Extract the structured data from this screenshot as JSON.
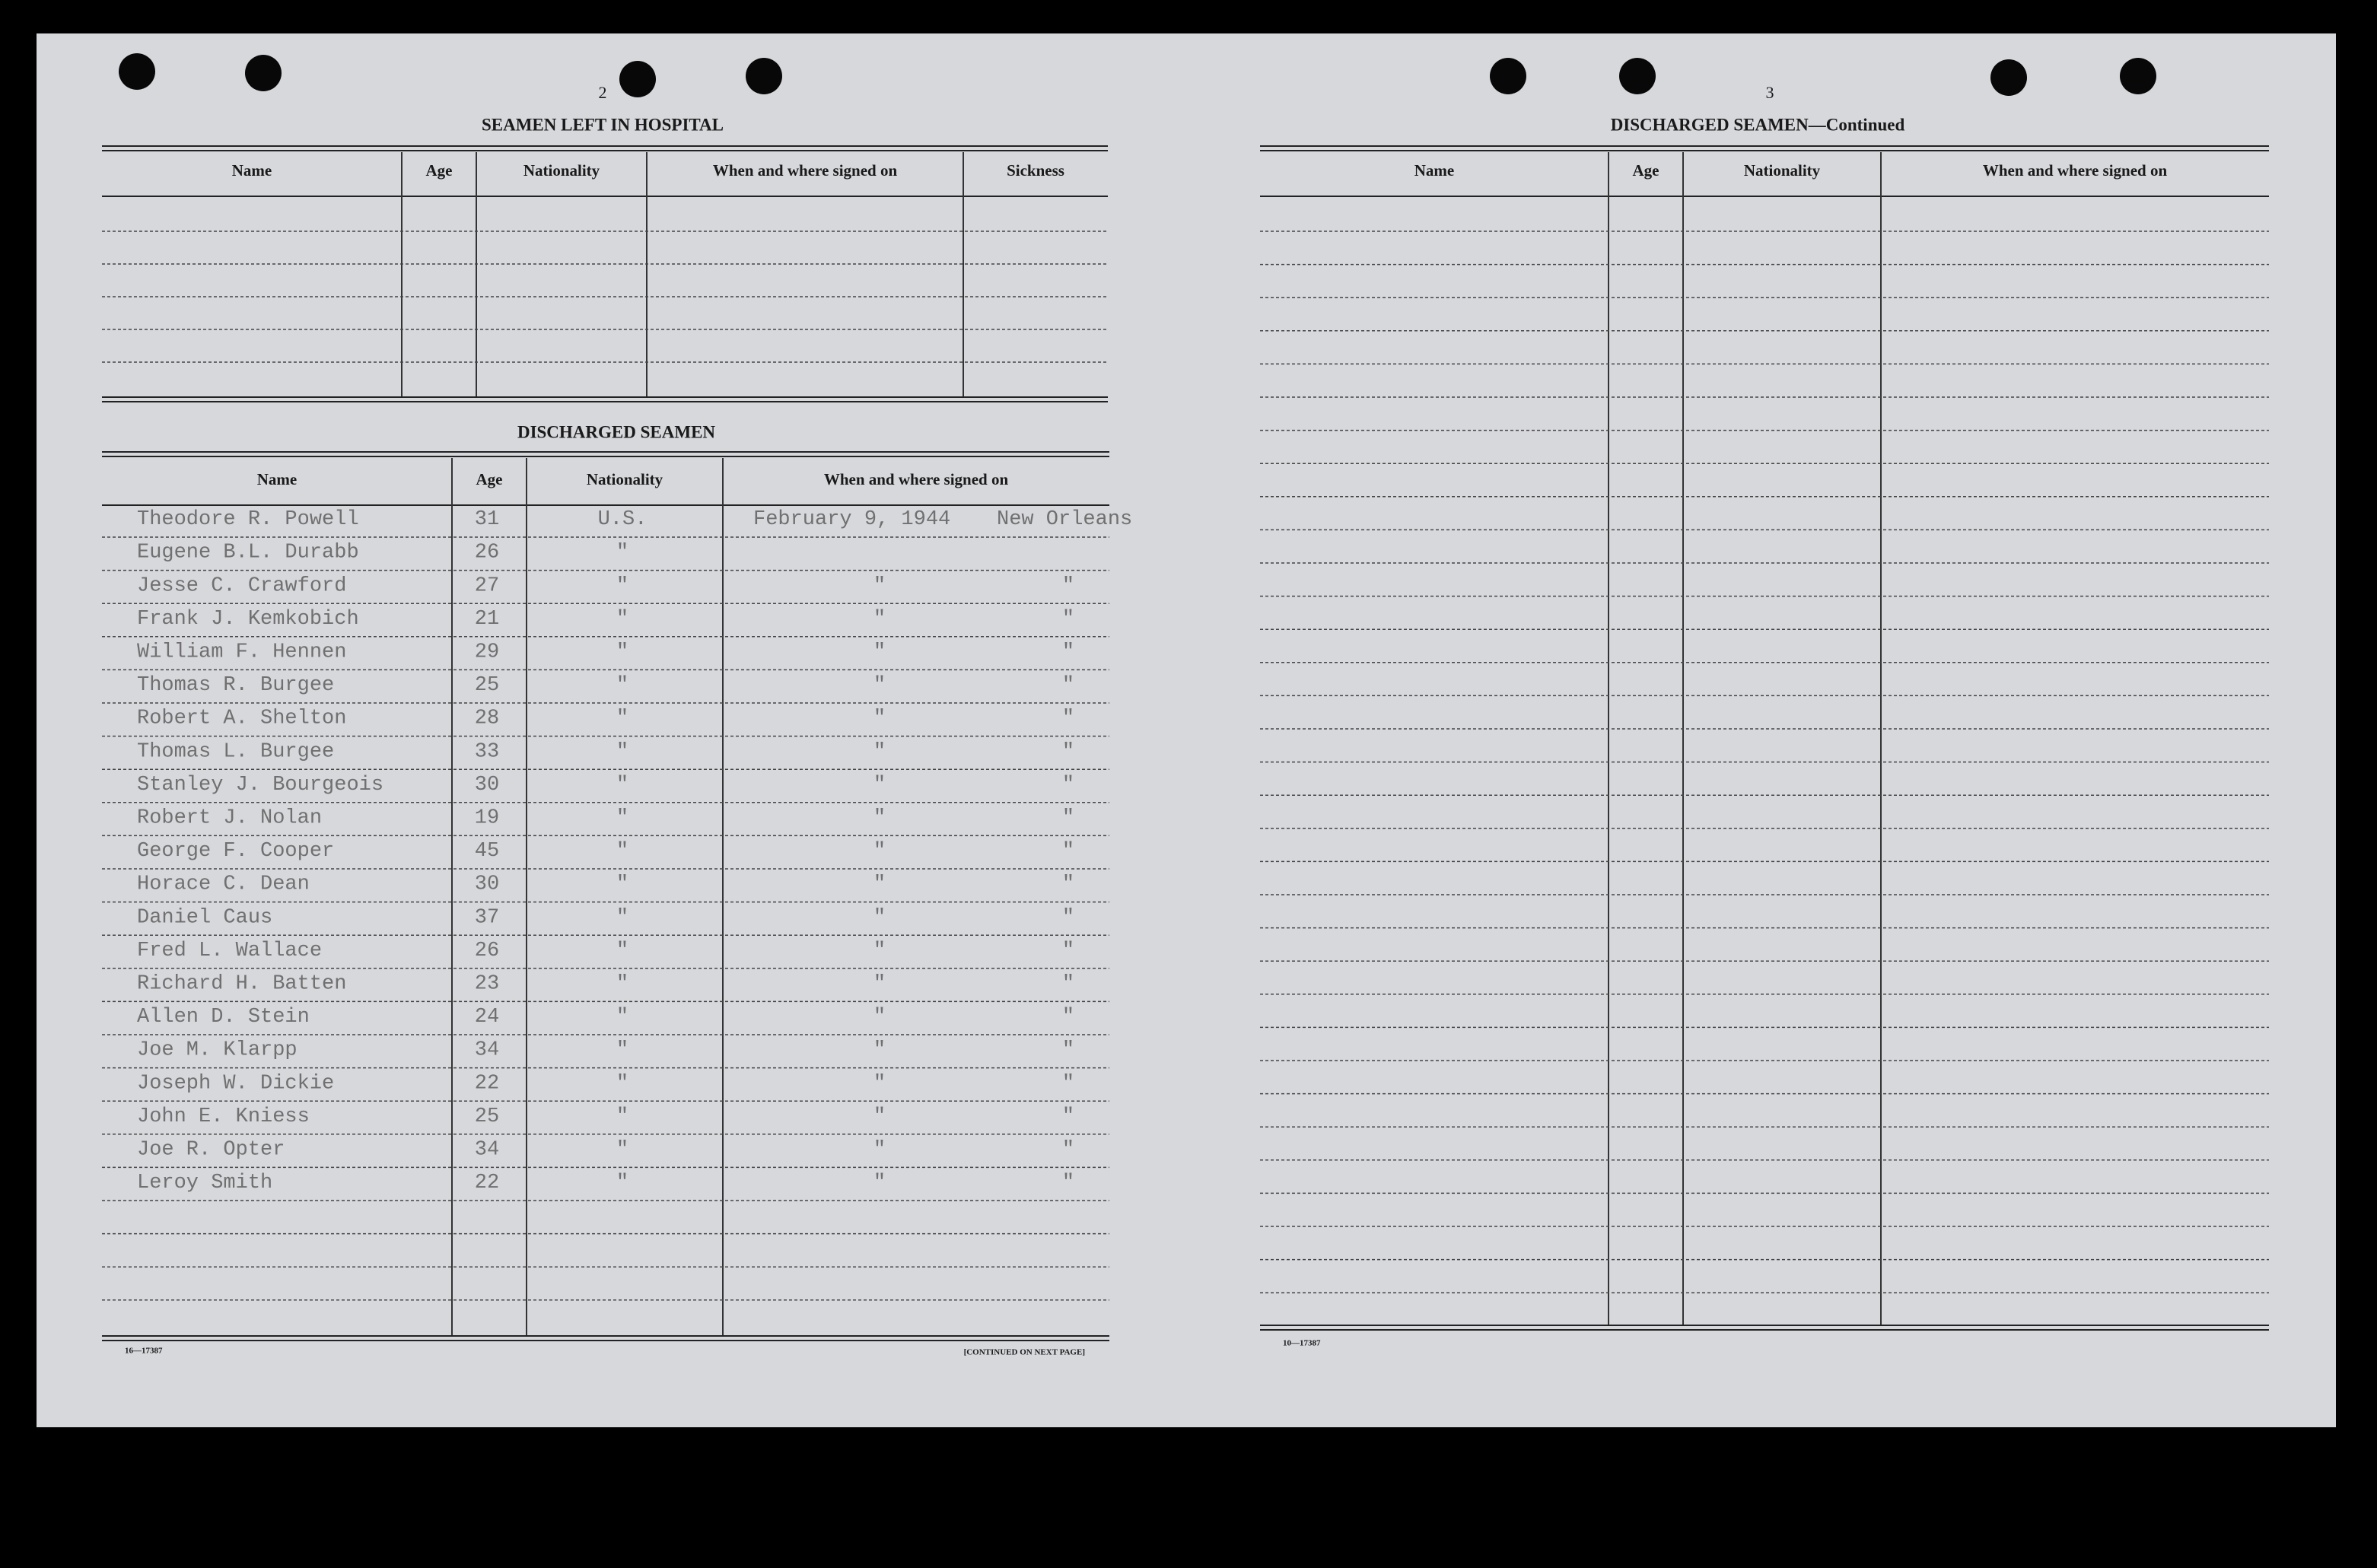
{
  "left_page": {
    "page_number": "2",
    "hospital": {
      "title": "SEAMEN LEFT IN HOSPITAL",
      "headers": [
        "Name",
        "Age",
        "Nationality",
        "When and where signed on",
        "Sickness"
      ]
    },
    "discharged": {
      "title": "DISCHARGED SEAMEN",
      "headers": [
        "Name",
        "Age",
        "Nationality",
        "When and where signed on"
      ],
      "rows": [
        {
          "name": "Theodore R. Powell",
          "age": 31,
          "nationality": "U.S.",
          "date": "February 9, 1944",
          "place": "New Orleans"
        },
        {
          "name": "Eugene B.L. Durabb",
          "age": 26,
          "nationality": "\"",
          "date": "",
          "place": ""
        },
        {
          "name": "Jesse C. Crawford",
          "age": 27,
          "nationality": "\"",
          "date": "\"",
          "place": "\""
        },
        {
          "name": "Frank J. Kemkobich",
          "age": 21,
          "nationality": "\"",
          "date": "\"",
          "place": "\""
        },
        {
          "name": "William F. Hennen",
          "age": 29,
          "nationality": "\"",
          "date": "\"",
          "place": "\""
        },
        {
          "name": "Thomas R. Burgee",
          "age": 25,
          "nationality": "\"",
          "date": "\"",
          "place": "\""
        },
        {
          "name": "Robert A. Shelton",
          "age": 28,
          "nationality": "\"",
          "date": "\"",
          "place": "\""
        },
        {
          "name": "Thomas L. Burgee",
          "age": 33,
          "nationality": "\"",
          "date": "\"",
          "place": "\""
        },
        {
          "name": "Stanley J. Bourgeois",
          "age": 30,
          "nationality": "\"",
          "date": "\"",
          "place": "\""
        },
        {
          "name": "Robert J. Nolan",
          "age": 19,
          "nationality": "\"",
          "date": "\"",
          "place": "\""
        },
        {
          "name": "George F. Cooper",
          "age": 45,
          "nationality": "\"",
          "date": "\"",
          "place": "\""
        },
        {
          "name": "Horace C. Dean",
          "age": 30,
          "nationality": "\"",
          "date": "\"",
          "place": "\""
        },
        {
          "name": "Daniel Caus",
          "age": 37,
          "nationality": "\"",
          "date": "\"",
          "place": "\""
        },
        {
          "name": "Fred L. Wallace",
          "age": 26,
          "nationality": "\"",
          "date": "\"",
          "place": "\""
        },
        {
          "name": "Richard H. Batten",
          "age": 23,
          "nationality": "\"",
          "date": "\"",
          "place": "\""
        },
        {
          "name": "Allen D. Stein",
          "age": 24,
          "nationality": "\"",
          "date": "\"",
          "place": "\""
        },
        {
          "name": "Joe M. Klarpp",
          "age": 34,
          "nationality": "\"",
          "date": "\"",
          "place": "\""
        },
        {
          "name": "Joseph W. Dickie",
          "age": 22,
          "nationality": "\"",
          "date": "\"",
          "place": "\""
        },
        {
          "name": "John E. Kniess",
          "age": 25,
          "nationality": "\"",
          "date": "\"",
          "place": "\""
        },
        {
          "name": "Joe R. Opter",
          "age": 34,
          "nationality": "\"",
          "date": "\"",
          "place": "\""
        },
        {
          "name": "Leroy Smith",
          "age": 22,
          "nationality": "\"",
          "date": "\"",
          "place": "\""
        }
      ]
    },
    "form_number": "16—17387",
    "continued": "[CONTINUED ON NEXT PAGE]"
  },
  "right_page": {
    "page_number": "3",
    "title": "DISCHARGED SEAMEN—Continued",
    "headers": [
      "Name",
      "Age",
      "Nationality",
      "When and where signed on"
    ],
    "form_number": "10—17387"
  }
}
